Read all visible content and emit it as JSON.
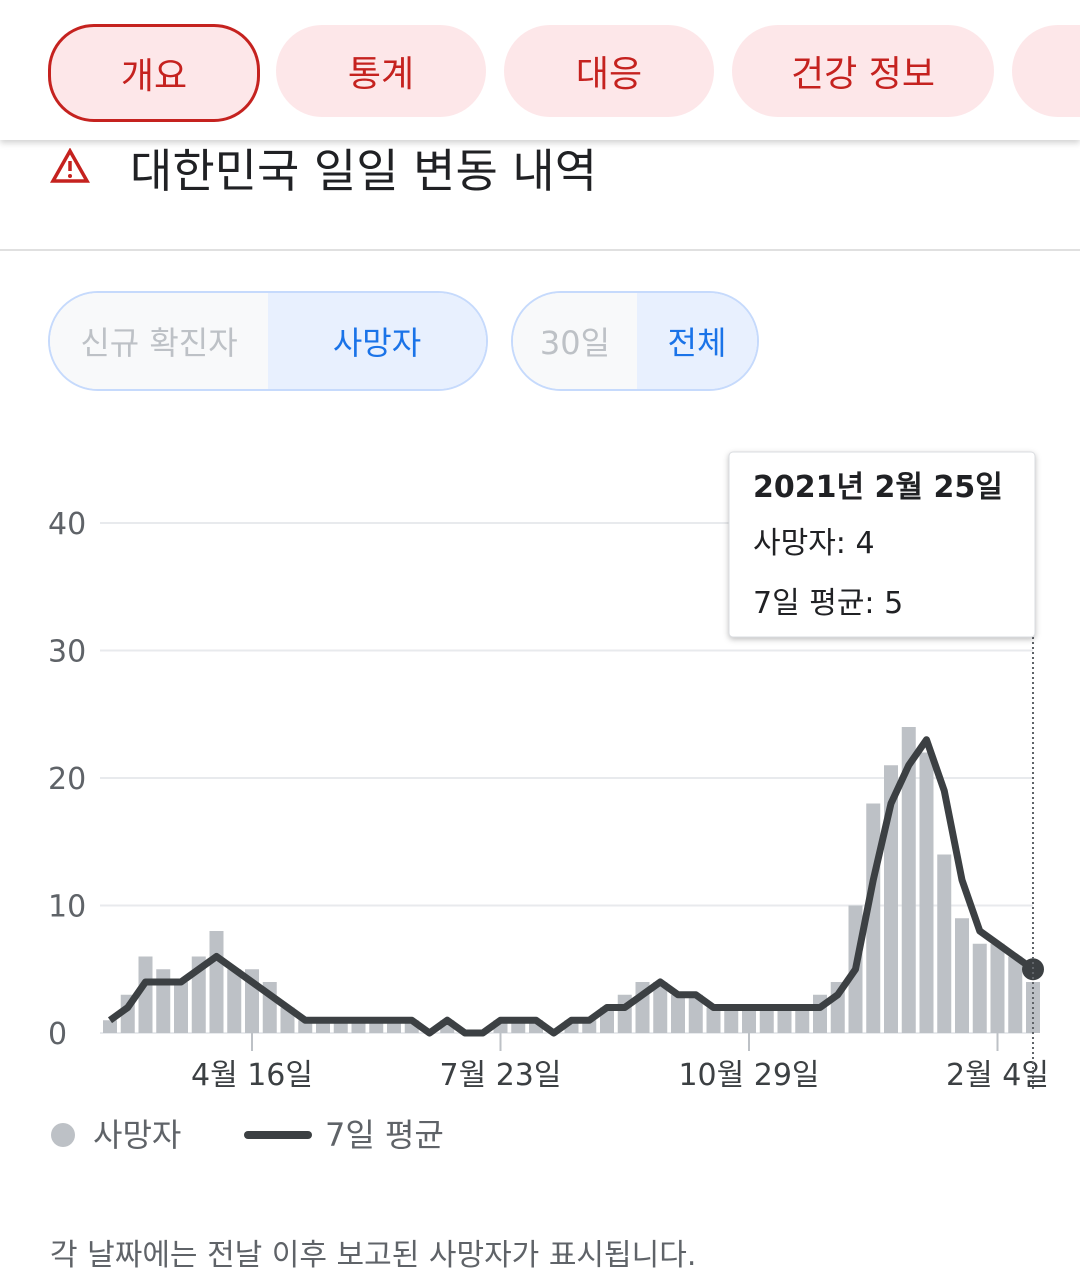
{
  "tabs": [
    "개요",
    "통계",
    "대응",
    "건강 정보"
  ],
  "heading": "대한민국 일일 변동 내역",
  "toggles": [
    [
      "신규 확진자",
      "사망자"
    ],
    [
      "30일",
      "전체"
    ]
  ],
  "chart_data": {
    "type": "bar",
    "categories": [
      null,
      null,
      null,
      null,
      null,
      null,
      null,
      null,
      "4월 16일",
      null,
      null,
      null,
      null,
      null,
      null,
      null,
      null,
      null,
      null,
      null,
      null,
      null,
      "7월 23일",
      null,
      null,
      null,
      null,
      null,
      null,
      null,
      null,
      null,
      null,
      null,
      null,
      null,
      "10월 29일",
      null,
      null,
      null,
      null,
      null,
      null,
      null,
      null,
      null,
      null,
      null,
      null,
      null,
      "2월 4일",
      null,
      null
    ],
    "series": [
      {
        "name": "사망자",
        "color": "#bdc1c6",
        "values": [
          1,
          3,
          6,
          5,
          4,
          6,
          8,
          5,
          5,
          4,
          2,
          1,
          1,
          1,
          1,
          1,
          1,
          1,
          0,
          1,
          0,
          0,
          1,
          1,
          1,
          0,
          1,
          1,
          2,
          3,
          4,
          4,
          3,
          3,
          2,
          2,
          2,
          2,
          2,
          2,
          3,
          4,
          10,
          18,
          21,
          24,
          22,
          14,
          9,
          7,
          7,
          6,
          4
        ]
      },
      {
        "name": "7일 평균",
        "color": "#3c4043",
        "type": "line",
        "values": [
          1,
          2,
          4,
          4,
          4,
          5,
          6,
          5,
          4,
          3,
          2,
          1,
          1,
          1,
          1,
          1,
          1,
          1,
          0,
          1,
          0,
          0,
          1,
          1,
          1,
          0,
          1,
          1,
          2,
          2,
          3,
          4,
          3,
          3,
          2,
          2,
          2,
          2,
          2,
          2,
          2,
          3,
          5,
          12,
          18,
          21,
          23,
          19,
          12,
          8,
          7,
          6,
          5
        ]
      }
    ],
    "ylim": [
      0,
      40
    ],
    "yticks": [
      0,
      10,
      20,
      30,
      40
    ],
    "grid": true,
    "tooltip": {
      "title": "2021년 2월 25일",
      "lines": [
        "사망자: 4",
        "7일 평균: 5"
      ]
    }
  },
  "footnote": "각 날짜에는 전날 이후 보고된 사망자가 표시됩니다."
}
